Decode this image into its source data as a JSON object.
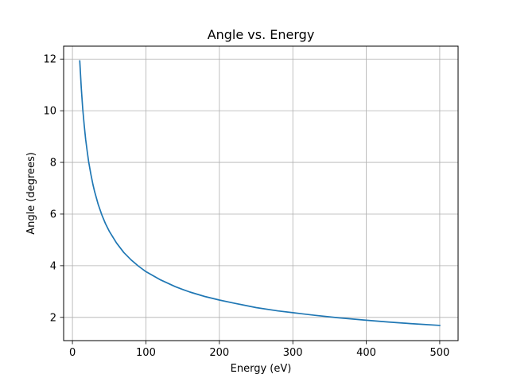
{
  "chart_data": {
    "type": "line",
    "title": "Angle vs. Energy",
    "xlabel": "Energy (eV)",
    "ylabel": "Angle (degrees)",
    "xlim": [
      -12,
      525
    ],
    "ylim": [
      1.1,
      12.5
    ],
    "xticks": [
      0,
      100,
      200,
      300,
      400,
      500
    ],
    "yticks": [
      2,
      4,
      6,
      8,
      10,
      12
    ],
    "grid": true,
    "series": [
      {
        "color": "#1f77b4",
        "x": [
          10,
          12,
          14,
          16,
          18,
          20,
          22,
          25,
          28,
          30,
          35,
          40,
          45,
          50,
          60,
          70,
          80,
          90,
          100,
          120,
          140,
          150,
          160,
          180,
          200,
          220,
          250,
          280,
          300,
          330,
          360,
          400,
          430,
          460,
          500
        ],
        "y": [
          11.93,
          10.88,
          10.08,
          9.43,
          8.89,
          8.44,
          8.04,
          7.55,
          7.14,
          6.89,
          6.38,
          5.97,
          5.63,
          5.34,
          4.88,
          4.51,
          4.22,
          3.98,
          3.77,
          3.45,
          3.19,
          3.08,
          2.98,
          2.81,
          2.67,
          2.55,
          2.38,
          2.25,
          2.18,
          2.08,
          1.99,
          1.89,
          1.82,
          1.76,
          1.69
        ]
      }
    ]
  }
}
